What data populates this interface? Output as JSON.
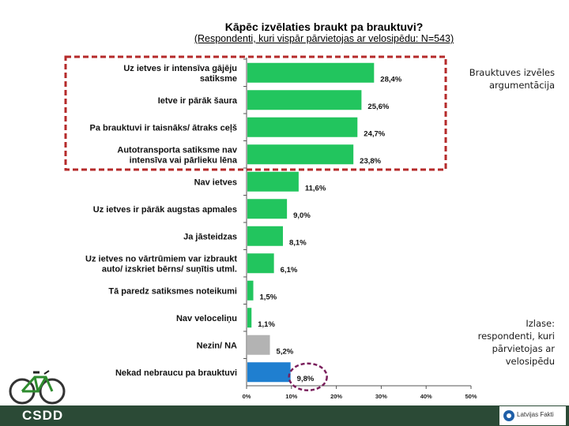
{
  "slide": {
    "note_top": "Brauktuves izvēles argumentācija",
    "note_bottom": "Izlase: respondenti, kuri pārvietojas ar velosipēdu",
    "footer_logo": "CSDD",
    "partner_logo": "Latvijas Fakti"
  },
  "chart_data": {
    "type": "bar",
    "orientation": "horizontal",
    "title": "Kāpēc izvēlaties braukt pa brauktuvi?",
    "subtitle": "(Respondenti, kuri vispār pārvietojas ar velosipēdu: N=543)",
    "categories": [
      [
        "Uz ietves ir intensīva gājēju",
        "satiksme"
      ],
      [
        "Ietve ir pārāk šaura"
      ],
      [
        "Pa brauktuvi ir taisnāks/ ātraks ceļš"
      ],
      [
        "Autotransporta satiksme nav",
        "intensīva vai pārlieku lēna"
      ],
      [
        "Nav ietves"
      ],
      [
        "Uz ietves ir pārāk augstas apmales"
      ],
      [
        "Ja jāsteidzas"
      ],
      [
        "Uz ietves no vārtrūmiem var izbraukt",
        "auto/ izskriet bērns/ suņītis utml."
      ],
      [
        "Tā paredz satiksmes noteikumi"
      ],
      [
        "Nav veloceliņu"
      ],
      [
        "Nezin/ NA"
      ],
      [
        "Nekad nebraucu pa brauktuvi"
      ]
    ],
    "values": [
      28.4,
      25.6,
      24.7,
      23.8,
      11.6,
      9.0,
      8.1,
      6.1,
      1.5,
      1.1,
      5.2,
      9.8
    ],
    "value_labels": [
      "28,4%",
      "25,6%",
      "24,7%",
      "23,8%",
      "11,6%",
      "9,0%",
      "8,1%",
      "6,1%",
      "1,5%",
      "1,1%",
      "5,2%",
      "9,8%"
    ],
    "bar_colors": [
      "#22c55e",
      "#22c55e",
      "#22c55e",
      "#22c55e",
      "#22c55e",
      "#22c55e",
      "#22c55e",
      "#22c55e",
      "#22c55e",
      "#22c55e",
      "#b3b3b3",
      "#1f7fd0"
    ],
    "xlim": [
      0,
      50
    ],
    "ticks": [
      0,
      10,
      20,
      30,
      40,
      50
    ],
    "tick_labels": [
      "0%",
      "10%",
      "20%",
      "30%",
      "40%",
      "50%"
    ],
    "grid": false,
    "highlight_box": "top 4 categories (red dashed)",
    "highlight_circle": "9,8%"
  }
}
